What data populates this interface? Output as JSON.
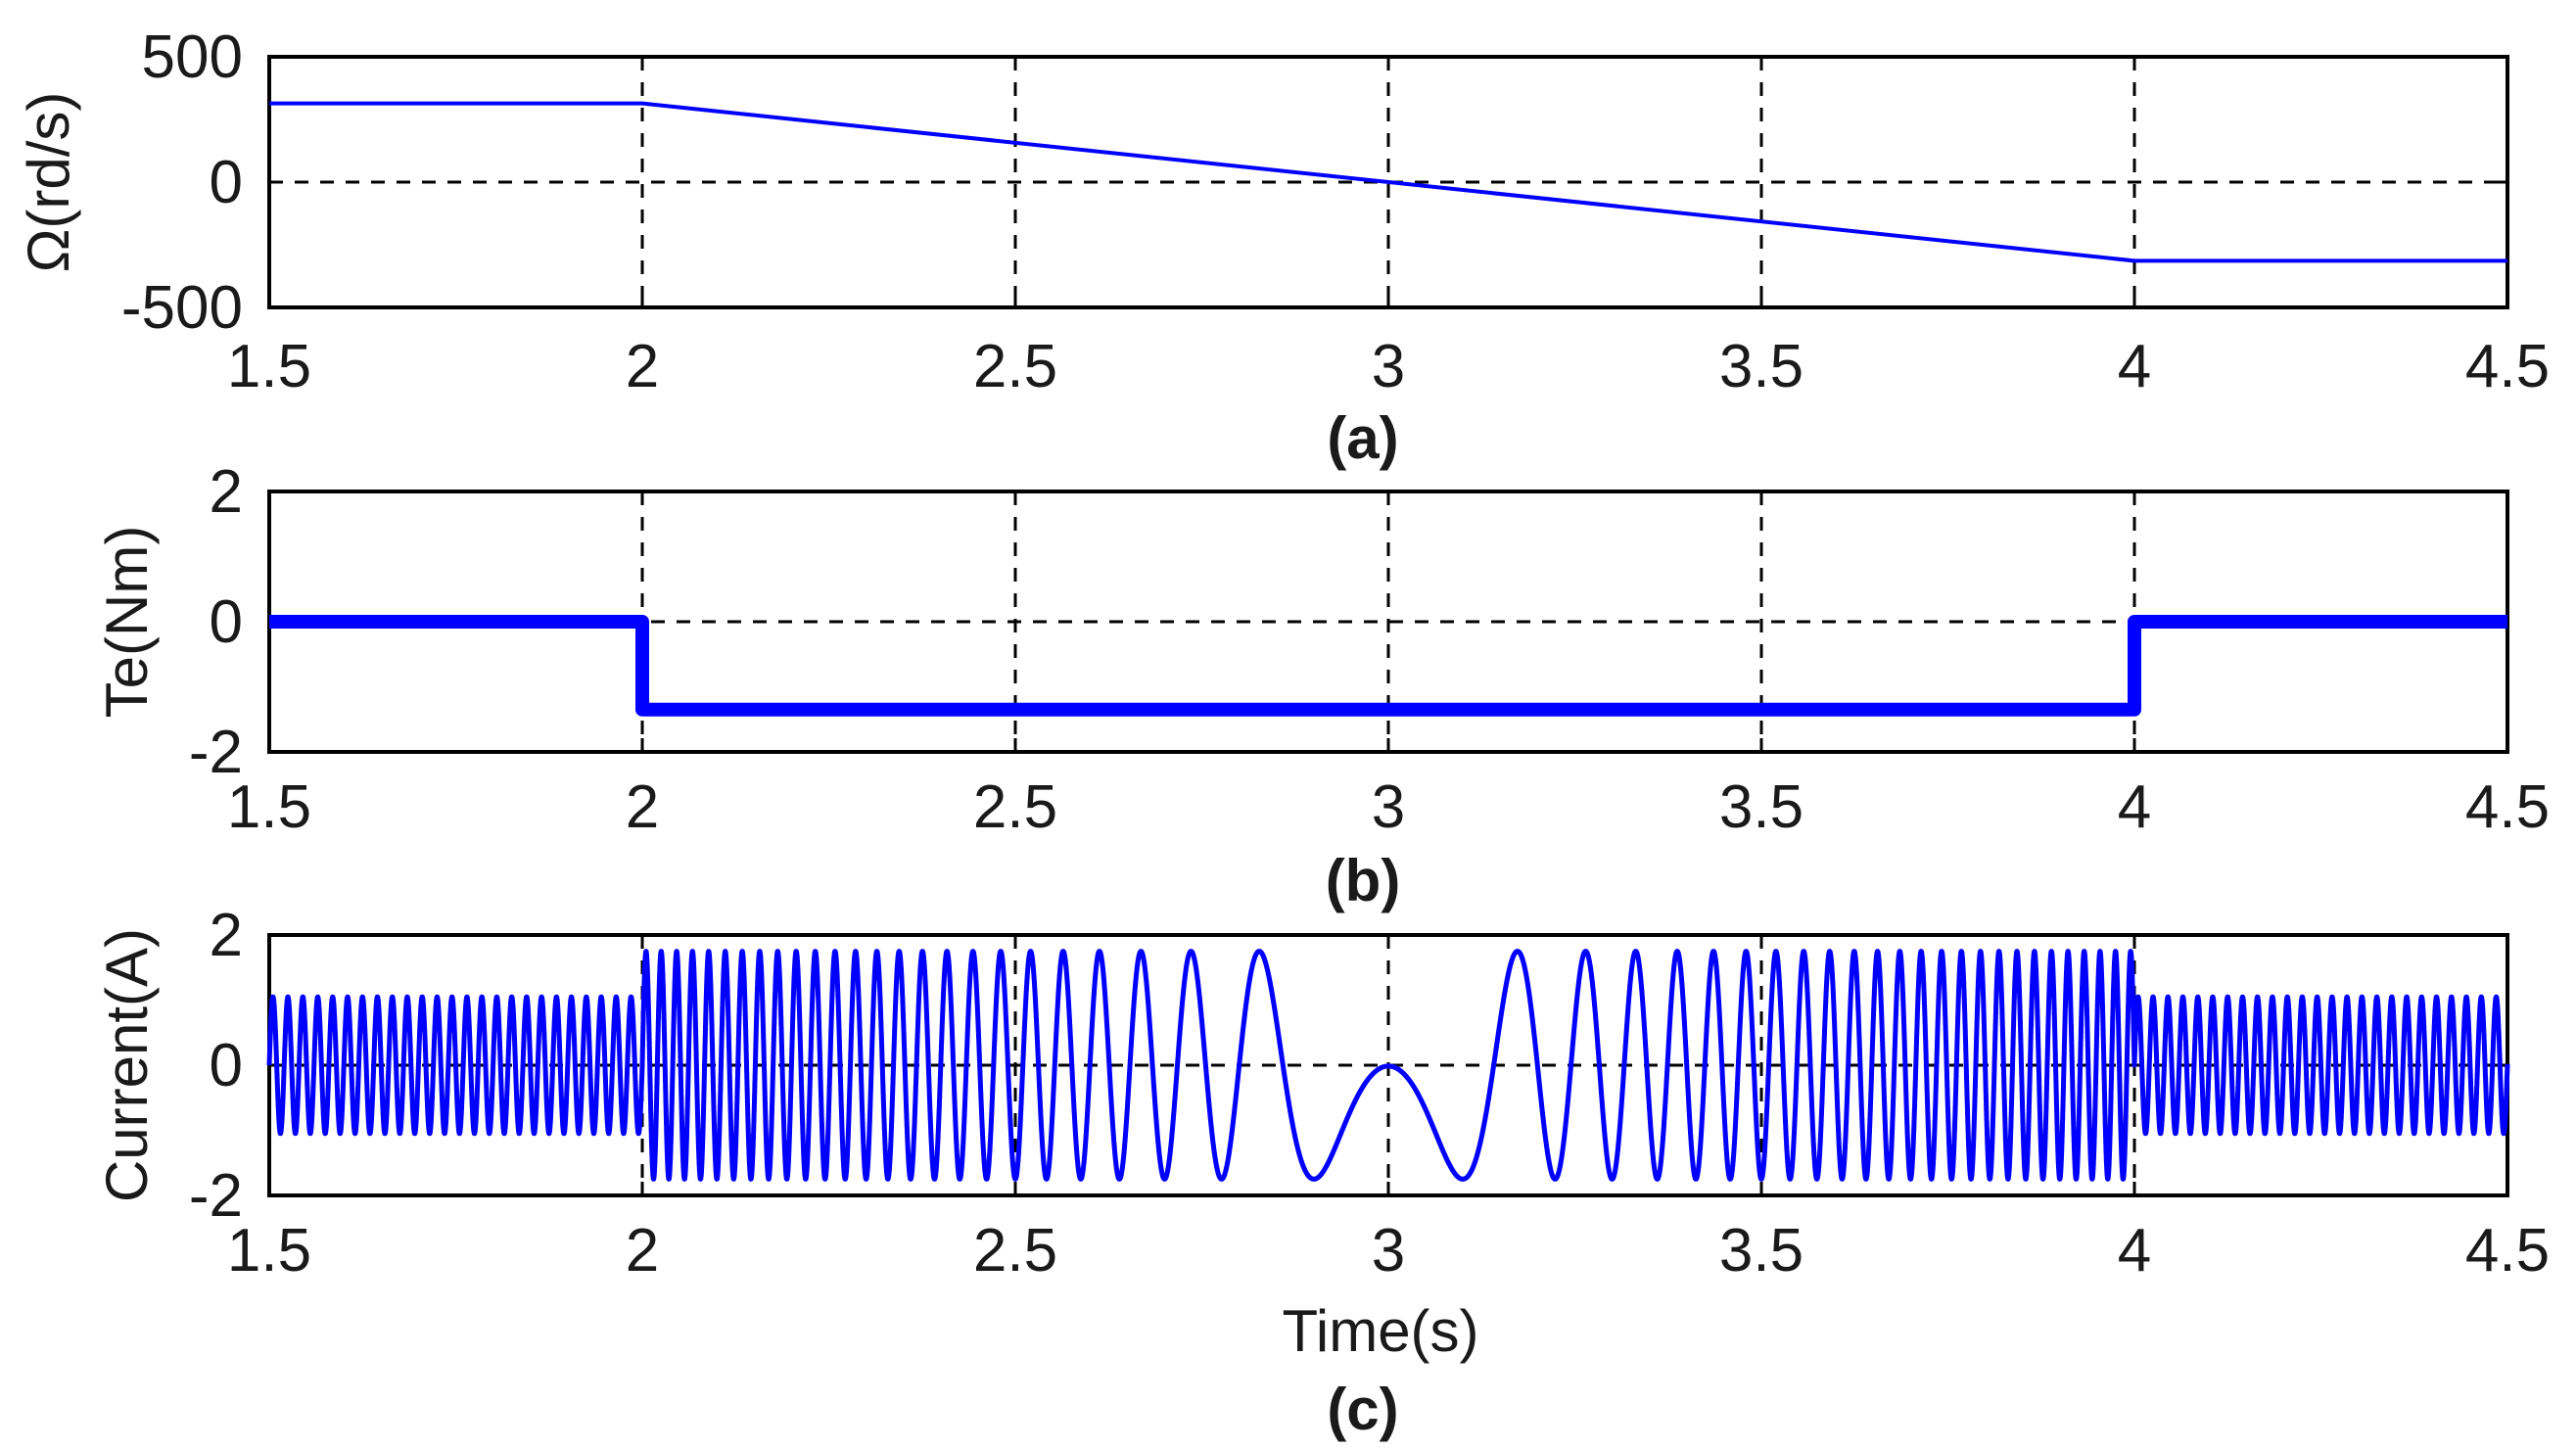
{
  "chart_data": [
    {
      "type": "line",
      "panel": "(a)",
      "ylabel": "Ω(rd/s)",
      "xlabel": "",
      "xlim": [
        1.5,
        4.5
      ],
      "ylim": [
        -500,
        500
      ],
      "xticks": [
        "1.5",
        "2",
        "2.5",
        "3",
        "3.5",
        "4",
        "4.5"
      ],
      "yticks": [
        "500",
        "0",
        "-500"
      ],
      "grid": true,
      "color": "#0000ff",
      "series": [
        {
          "x": [
            1.5,
            2.0,
            4.0,
            4.5
          ],
          "y": [
            314,
            314,
            -314,
            -314
          ]
        }
      ]
    },
    {
      "type": "line",
      "panel": "(b)",
      "ylabel": "Te(Nm)",
      "xlabel": "",
      "xlim": [
        1.5,
        4.5
      ],
      "ylim": [
        -2,
        2
      ],
      "xticks": [
        "1.5",
        "2",
        "2.5",
        "3",
        "3.5",
        "4",
        "4.5"
      ],
      "yticks": [
        "2",
        "0",
        "-2"
      ],
      "grid": true,
      "color": "#0000ff",
      "series": [
        {
          "x": [
            1.5,
            2.0,
            2.0,
            4.0,
            4.0,
            4.5
          ],
          "y": [
            0,
            0,
            -1.35,
            -1.35,
            0,
            0
          ]
        }
      ]
    },
    {
      "type": "line",
      "panel": "(c)",
      "ylabel": "Current(A)",
      "xlabel": "Time(s)",
      "xlim": [
        1.5,
        4.5
      ],
      "ylim": [
        -2,
        2
      ],
      "xticks": [
        "1.5",
        "2",
        "2.5",
        "3",
        "3.5",
        "4",
        "4.5"
      ],
      "yticks": [
        "2",
        "0",
        "-2"
      ],
      "grid": true,
      "color": "#0000ff",
      "series": [
        {
          "description_of_signal": "sinusoid",
          "segments": [
            {
              "x_start": 1.5,
              "x_end": 2.0,
              "amplitude": 1.05,
              "frequency_hz": 50
            },
            {
              "x_start": 2.0,
              "x_end": 4.0,
              "amplitude": 1.75,
              "frequency_hz_start": 50,
              "frequency_hz_end": -50,
              "zero_crossing_x": 3.0
            },
            {
              "x_start": 4.0,
              "x_end": 4.5,
              "amplitude": 1.05,
              "frequency_hz": 50
            }
          ]
        }
      ]
    }
  ],
  "captions": [
    "(a)",
    "(b)",
    "(c)"
  ]
}
